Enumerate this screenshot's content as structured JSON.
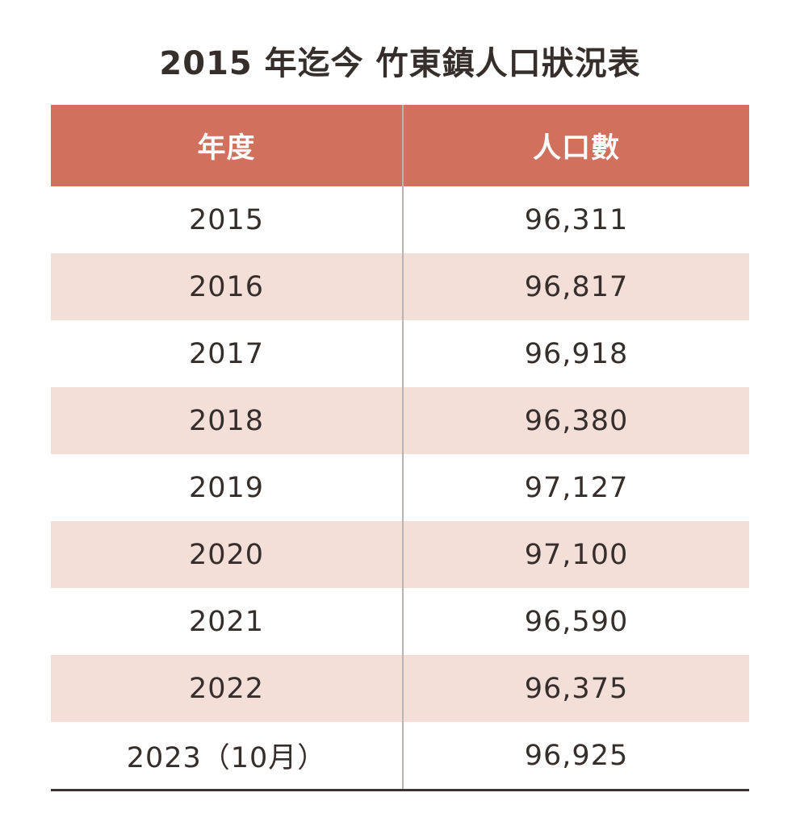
{
  "title": "2015 年迄今 竹東鎮人口狀況表",
  "colors": {
    "header_bg": "#d0705d",
    "row_alt_bg": "#f4ded8",
    "header_text": "#ffffff",
    "body_text": "#362e2b",
    "divider": "#b9b3b1",
    "bottom_rule": "#3a3330"
  },
  "chart_data": {
    "type": "table",
    "title": "2015 年迄今 竹東鎮人口狀況表",
    "columns": [
      "年度",
      "人口數"
    ],
    "rows": [
      [
        "2015",
        "96,311"
      ],
      [
        "2016",
        "96,817"
      ],
      [
        "2017",
        "96,918"
      ],
      [
        "2018",
        "96,380"
      ],
      [
        "2019",
        "97,127"
      ],
      [
        "2020",
        "97,100"
      ],
      [
        "2021",
        "96,590"
      ],
      [
        "2022",
        "96,375"
      ],
      [
        "2023（10月）",
        "96,925"
      ]
    ],
    "notes": {
      "layout": "two-column table, alternating white and pink rows, dark rule at bottom",
      "population_values_numeric": [
        96311,
        96817,
        96918,
        96380,
        97127,
        97100,
        96590,
        96375,
        96925
      ]
    }
  }
}
